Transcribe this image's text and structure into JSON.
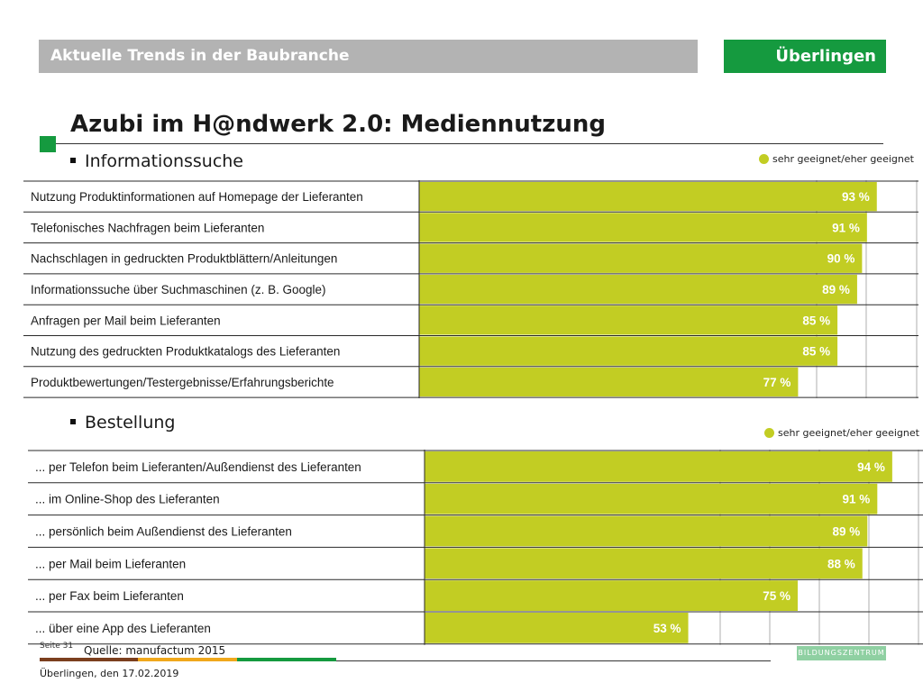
{
  "header": {
    "title": "Aktuelle Trends in der Baubranche",
    "location": "Überlingen"
  },
  "slide": {
    "title": "Azubi im H@ndwerk 2.0: Mediennutzung",
    "section1": "Informationssuche",
    "section2": "Bestellung"
  },
  "legend": {
    "label": "sehr geeignet/eher geeignet"
  },
  "colors": {
    "bar": "#c2cd23",
    "header_gray": "#b3b3b3",
    "brand_green": "#159a3f"
  },
  "chart_data": [
    {
      "type": "bar",
      "orientation": "horizontal",
      "title": "Informationssuche",
      "categories": [
        "Nutzung Produktinformationen auf Homepage der Lieferanten",
        "Telefonisches Nachfragen beim Lieferanten",
        "Nachschlagen in gedruckten Produktblättern/Anleitungen",
        "Informationssuche über Suchmaschinen (z. B. Google)",
        "Anfragen per Mail beim Lieferanten",
        "Nutzung des gedruckten Produktkatalogs des Lieferanten",
        "Produktbewertungen/Testergebnisse/Erfahrungsberichte"
      ],
      "series": [
        {
          "name": "sehr geeignet/eher geeignet",
          "values": [
            93,
            91,
            90,
            89,
            85,
            85,
            77
          ]
        }
      ],
      "labels": [
        "93 %",
        "91 %",
        "90 %",
        "89 %",
        "85 %",
        "85 %",
        "77 %"
      ],
      "xlim": [
        0,
        100
      ],
      "legend": "top-right"
    },
    {
      "type": "bar",
      "orientation": "horizontal",
      "title": "Bestellung",
      "categories": [
        "... per Telefon beim Lieferanten/Außendienst des Lieferanten",
        "... im Online-Shop des Lieferanten",
        "... persönlich beim Außendienst des Lieferanten",
        "... per Mail beim Lieferanten",
        "... per Fax beim Lieferanten",
        "... über eine App des Lieferanten"
      ],
      "series": [
        {
          "name": "sehr geeignet/eher geeignet",
          "values": [
            94,
            91,
            89,
            88,
            75,
            53
          ]
        }
      ],
      "labels": [
        "94 %",
        "91 %",
        "89 %",
        "88 %",
        "75 %",
        "53 %"
      ],
      "xlim": [
        0,
        100
      ],
      "legend": "top-right"
    }
  ],
  "footer": {
    "page": "Seite 31",
    "source": "Quelle: manufactum 2015",
    "date": "Überlingen, den 17.02.2019",
    "logo_text": "BILDUNGSZENTRUM"
  }
}
